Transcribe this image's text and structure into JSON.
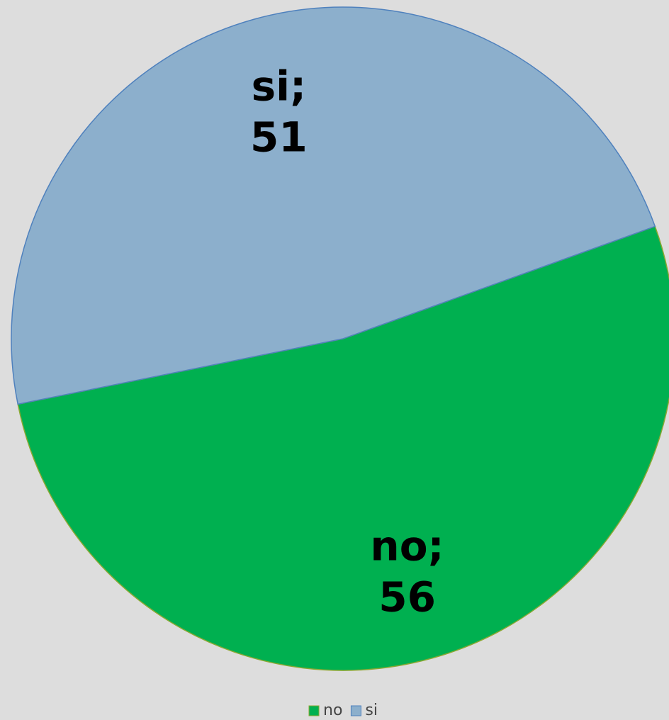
{
  "chart_data": {
    "type": "pie",
    "categories": [
      "no",
      "si"
    ],
    "values": [
      56,
      51
    ],
    "colors": [
      "#00b050",
      "#8cafcc"
    ],
    "data_label_separator": ";",
    "legend": "bottom"
  }
}
